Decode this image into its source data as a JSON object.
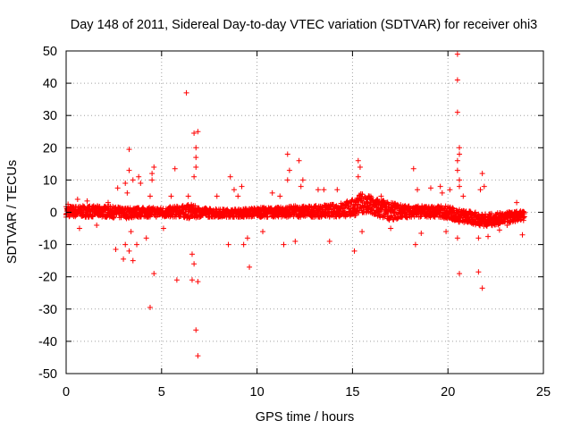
{
  "chart_data": {
    "type": "scatter",
    "title": "Day 148 of 2011, Sidereal Day-to-day VTEC variation (SDTVAR) for receiver ohi3",
    "xlabel": "GPS time / hours",
    "ylabel": "SDTVAR / TECUs",
    "xlim": [
      0,
      25
    ],
    "ylim": [
      -50,
      50
    ],
    "xticks": [
      "0",
      "5",
      "10",
      "15",
      "20",
      "25"
    ],
    "yticks": [
      "50",
      "40",
      "30",
      "20",
      "10",
      "0",
      "-10",
      "-20",
      "-30",
      "-40",
      "-50"
    ],
    "grid": true,
    "marker": "+",
    "series_color": "#ff0000",
    "band": {
      "x": [
        0,
        1,
        2,
        3,
        4,
        5,
        6,
        6.5,
        7,
        8,
        9,
        10,
        11,
        12,
        13,
        14,
        15,
        15.5,
        16,
        17,
        18,
        19,
        20,
        20.5,
        21,
        22,
        23,
        24
      ],
      "upper": [
        2,
        2,
        2,
        1.5,
        1.5,
        1.5,
        2,
        2.5,
        1.5,
        1,
        1,
        1.5,
        1.5,
        2,
        2,
        2.5,
        4,
        6,
        5,
        3,
        2,
        2,
        2,
        1,
        0.5,
        -0.5,
        0,
        0.5
      ],
      "lower": [
        -1.5,
        -1.5,
        -1.5,
        -2,
        -1.5,
        -1.5,
        -1.5,
        -2,
        -1.5,
        -1.5,
        -1.5,
        -1.5,
        -1.5,
        -1.5,
        -1.5,
        -1.5,
        -1.5,
        0,
        -1.5,
        -2.5,
        -1.5,
        -1.5,
        -2,
        -3,
        -3.5,
        -4.5,
        -3.5,
        -2.5
      ]
    },
    "outliers": [
      {
        "x": 20.5,
        "y": 49
      },
      {
        "x": 20.5,
        "y": 41
      },
      {
        "x": 20.5,
        "y": 31
      },
      {
        "x": 20.6,
        "y": 20
      },
      {
        "x": 20.6,
        "y": 18
      },
      {
        "x": 20.5,
        "y": 16
      },
      {
        "x": 20.5,
        "y": 13
      },
      {
        "x": 20.6,
        "y": 10
      },
      {
        "x": 20.6,
        "y": 8
      },
      {
        "x": 20.5,
        "y": -8
      },
      {
        "x": 20.6,
        "y": -19
      },
      {
        "x": 6.3,
        "y": 37
      },
      {
        "x": 6.7,
        "y": 24.5
      },
      {
        "x": 6.9,
        "y": 25
      },
      {
        "x": 6.8,
        "y": 20
      },
      {
        "x": 6.8,
        "y": 17
      },
      {
        "x": 6.8,
        "y": 14
      },
      {
        "x": 6.7,
        "y": 11
      },
      {
        "x": 6.4,
        "y": 5
      },
      {
        "x": 6.6,
        "y": -13
      },
      {
        "x": 6.7,
        "y": -16
      },
      {
        "x": 6.6,
        "y": -21
      },
      {
        "x": 6.9,
        "y": -21.5
      },
      {
        "x": 6.8,
        "y": -36.5
      },
      {
        "x": 6.9,
        "y": -44.5
      },
      {
        "x": 3.3,
        "y": 19.5
      },
      {
        "x": 3.3,
        "y": 13
      },
      {
        "x": 3.5,
        "y": 10
      },
      {
        "x": 3.1,
        "y": 9
      },
      {
        "x": 3.2,
        "y": 6
      },
      {
        "x": 3.4,
        "y": -6
      },
      {
        "x": 3.1,
        "y": -10
      },
      {
        "x": 3.3,
        "y": -12
      },
      {
        "x": 3.5,
        "y": -15
      },
      {
        "x": 3.0,
        "y": -14.5
      },
      {
        "x": 2.6,
        "y": -11.5
      },
      {
        "x": 2.7,
        "y": 7.5
      },
      {
        "x": 3.8,
        "y": 11
      },
      {
        "x": 3.9,
        "y": 9
      },
      {
        "x": 4.4,
        "y": 5
      },
      {
        "x": 4.5,
        "y": 12
      },
      {
        "x": 4.6,
        "y": 14
      },
      {
        "x": 4.5,
        "y": 10
      },
      {
        "x": 4.6,
        "y": -19
      },
      {
        "x": 4.4,
        "y": -29.5
      },
      {
        "x": 4.2,
        "y": -8
      },
      {
        "x": 5.7,
        "y": 13.5
      },
      {
        "x": 5.8,
        "y": -21
      },
      {
        "x": 5.5,
        "y": 5
      },
      {
        "x": 8.6,
        "y": 11
      },
      {
        "x": 8.8,
        "y": 7
      },
      {
        "x": 9.2,
        "y": 8
      },
      {
        "x": 9.5,
        "y": -8
      },
      {
        "x": 9.6,
        "y": -17
      },
      {
        "x": 9.3,
        "y": -10
      },
      {
        "x": 8.5,
        "y": -10
      },
      {
        "x": 9.0,
        "y": 5
      },
      {
        "x": 10.8,
        "y": 6
      },
      {
        "x": 11.2,
        "y": 5
      },
      {
        "x": 11.6,
        "y": 18
      },
      {
        "x": 11.7,
        "y": 13
      },
      {
        "x": 11.6,
        "y": 10
      },
      {
        "x": 12.2,
        "y": 16
      },
      {
        "x": 12.4,
        "y": 10
      },
      {
        "x": 12.3,
        "y": 8
      },
      {
        "x": 12.0,
        "y": -9
      },
      {
        "x": 11.4,
        "y": -10
      },
      {
        "x": 13.2,
        "y": 7
      },
      {
        "x": 13.5,
        "y": 7
      },
      {
        "x": 14.2,
        "y": 7
      },
      {
        "x": 13.8,
        "y": -9
      },
      {
        "x": 15.3,
        "y": 16
      },
      {
        "x": 15.4,
        "y": 14
      },
      {
        "x": 15.3,
        "y": 11
      },
      {
        "x": 15.1,
        "y": -12
      },
      {
        "x": 15.5,
        "y": -6
      },
      {
        "x": 17.0,
        "y": -5
      },
      {
        "x": 18.2,
        "y": 13.5
      },
      {
        "x": 18.4,
        "y": 7
      },
      {
        "x": 18.3,
        "y": -10
      },
      {
        "x": 18.6,
        "y": -6.5
      },
      {
        "x": 19.1,
        "y": 7.5
      },
      {
        "x": 19.6,
        "y": 8
      },
      {
        "x": 19.7,
        "y": 6
      },
      {
        "x": 20.1,
        "y": 7
      },
      {
        "x": 20.8,
        "y": 5
      },
      {
        "x": 21.6,
        "y": -18.5
      },
      {
        "x": 21.8,
        "y": -23.5
      },
      {
        "x": 21.8,
        "y": 12
      },
      {
        "x": 21.9,
        "y": 8
      },
      {
        "x": 21.7,
        "y": 7
      },
      {
        "x": 22.1,
        "y": -7.5
      },
      {
        "x": 21.6,
        "y": -8
      },
      {
        "x": 23.6,
        "y": 3
      },
      {
        "x": 23.9,
        "y": -7
      },
      {
        "x": 0.6,
        "y": 4
      },
      {
        "x": 0.7,
        "y": -5
      },
      {
        "x": 1.1,
        "y": 3.5
      },
      {
        "x": 0.1,
        "y": 2.5
      },
      {
        "x": 2.2,
        "y": 3
      },
      {
        "x": 1.6,
        "y": -4
      },
      {
        "x": 3.7,
        "y": -10
      },
      {
        "x": 5.1,
        "y": -5
      },
      {
        "x": 7.9,
        "y": 5
      },
      {
        "x": 10.3,
        "y": -6
      },
      {
        "x": 16.5,
        "y": 5
      },
      {
        "x": 19.9,
        "y": -6
      },
      {
        "x": 22.7,
        "y": -5.5
      },
      {
        "x": 23.1,
        "y": -4
      }
    ]
  }
}
